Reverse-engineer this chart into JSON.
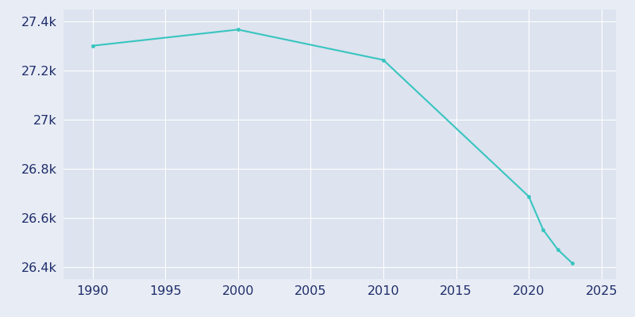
{
  "years": [
    1990,
    2000,
    2010,
    2020,
    2021,
    2022,
    2023
  ],
  "population": [
    27302,
    27368,
    27244,
    26687,
    26550,
    26470,
    26414
  ],
  "line_color": "#38c5c0",
  "outer_bg_color": "#e8ecf4",
  "plot_bg_color": "#dde3ef",
  "text_color": "#1e2d6b",
  "xlim": [
    1988,
    2026
  ],
  "ylim": [
    26350,
    27450
  ],
  "yticks": [
    26400,
    26600,
    26800,
    27000,
    27200,
    27400
  ],
  "ytick_labels": [
    "26.4k",
    "26.6k",
    "26.8k",
    "27k",
    "27.2k",
    "27.4k"
  ],
  "xticks": [
    1990,
    1995,
    2000,
    2005,
    2010,
    2015,
    2020,
    2025
  ],
  "line_width": 1.5,
  "marker": "o",
  "marker_size": 3.5,
  "grid_color": "#ffffff",
  "grid_linewidth": 0.8,
  "tick_fontsize": 11.5
}
